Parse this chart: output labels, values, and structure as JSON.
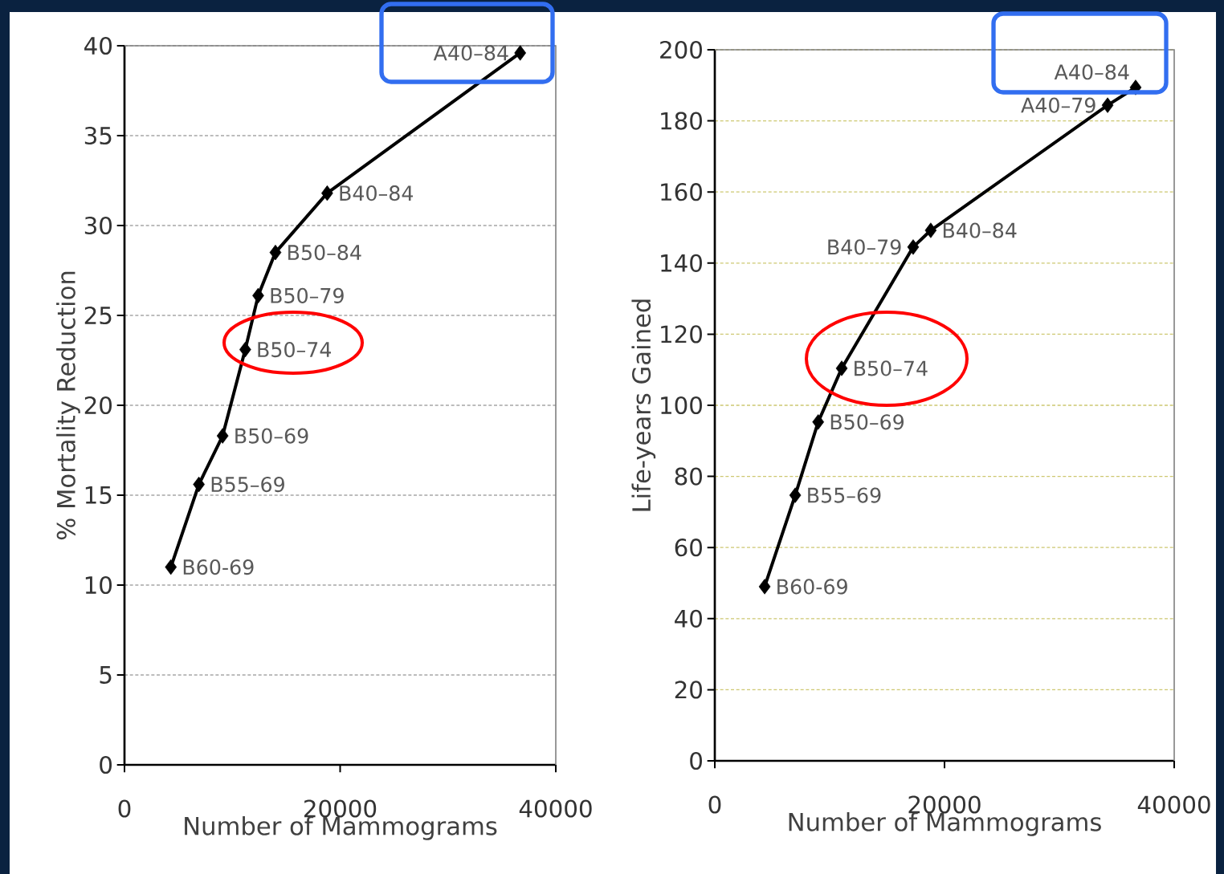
{
  "chart_data": [
    {
      "type": "line",
      "xlabel": "Number of Mammograms",
      "ylabel": "% Mortality Reduction",
      "xlim": [
        0,
        40000
      ],
      "ylim": [
        0,
        40
      ],
      "xticks": [
        0,
        20000,
        40000
      ],
      "yticks": [
        0,
        5,
        10,
        15,
        20,
        25,
        30,
        35,
        40
      ],
      "grid": "y",
      "marker": "diamond",
      "line_style": "solid",
      "x": [
        4300,
        6900,
        9100,
        11200,
        12400,
        14000,
        18800,
        36700
      ],
      "series": [
        {
          "color": "#000000",
          "values": [
            11.0,
            15.6,
            18.3,
            23.1,
            26.1,
            28.5,
            31.8,
            39.6
          ]
        }
      ],
      "annotations": [
        {
          "text": "B60-69",
          "x": 4300,
          "y": 11.0
        },
        {
          "text": "B55–69",
          "x": 6900,
          "y": 15.6
        },
        {
          "text": "B50–69",
          "x": 9100,
          "y": 18.3
        },
        {
          "text": "B50–74",
          "x": 11200,
          "y": 23.1
        },
        {
          "text": "B50–79",
          "x": 12400,
          "y": 26.1
        },
        {
          "text": "B50–84",
          "x": 14000,
          "y": 28.5
        },
        {
          "text": "B40–84",
          "x": 18800,
          "y": 31.8
        },
        {
          "text": "A40–84",
          "x": 36700,
          "y": 39.6
        }
      ]
    },
    {
      "type": "line",
      "xlabel": "Number of Mammograms",
      "ylabel": "Life-years Gained",
      "xlim": [
        0,
        40000
      ],
      "ylim": [
        0,
        200
      ],
      "xticks": [
        0,
        20000,
        40000
      ],
      "yticks": [
        0,
        20,
        40,
        60,
        80,
        100,
        120,
        140,
        160,
        180,
        200
      ],
      "grid": "y",
      "marker": "diamond",
      "line_style": "solid",
      "x": [
        4340,
        7000,
        9000,
        11050,
        17270,
        18800,
        34200,
        36640
      ],
      "series": [
        {
          "color": "#000000",
          "values": [
            49.0,
            74.7,
            95.3,
            110.4,
            144.5,
            149.2,
            184.4,
            189.4
          ]
        }
      ],
      "annotations": [
        {
          "text": "B60-69",
          "x": 4340,
          "y": 49.0
        },
        {
          "text": "B55–69",
          "x": 7000,
          "y": 74.7
        },
        {
          "text": "B50–69",
          "x": 9000,
          "y": 95.3
        },
        {
          "text": "B50–74",
          "x": 11050,
          "y": 110.4
        },
        {
          "text": "B40–79",
          "x": 17270,
          "y": 144.5
        },
        {
          "text": "B40–84",
          "x": 18800,
          "y": 149.2
        },
        {
          "text": "A40–79",
          "x": 34200,
          "y": 184.4
        },
        {
          "text": "A40–84",
          "x": 36640,
          "y": 189.4
        }
      ]
    }
  ]
}
